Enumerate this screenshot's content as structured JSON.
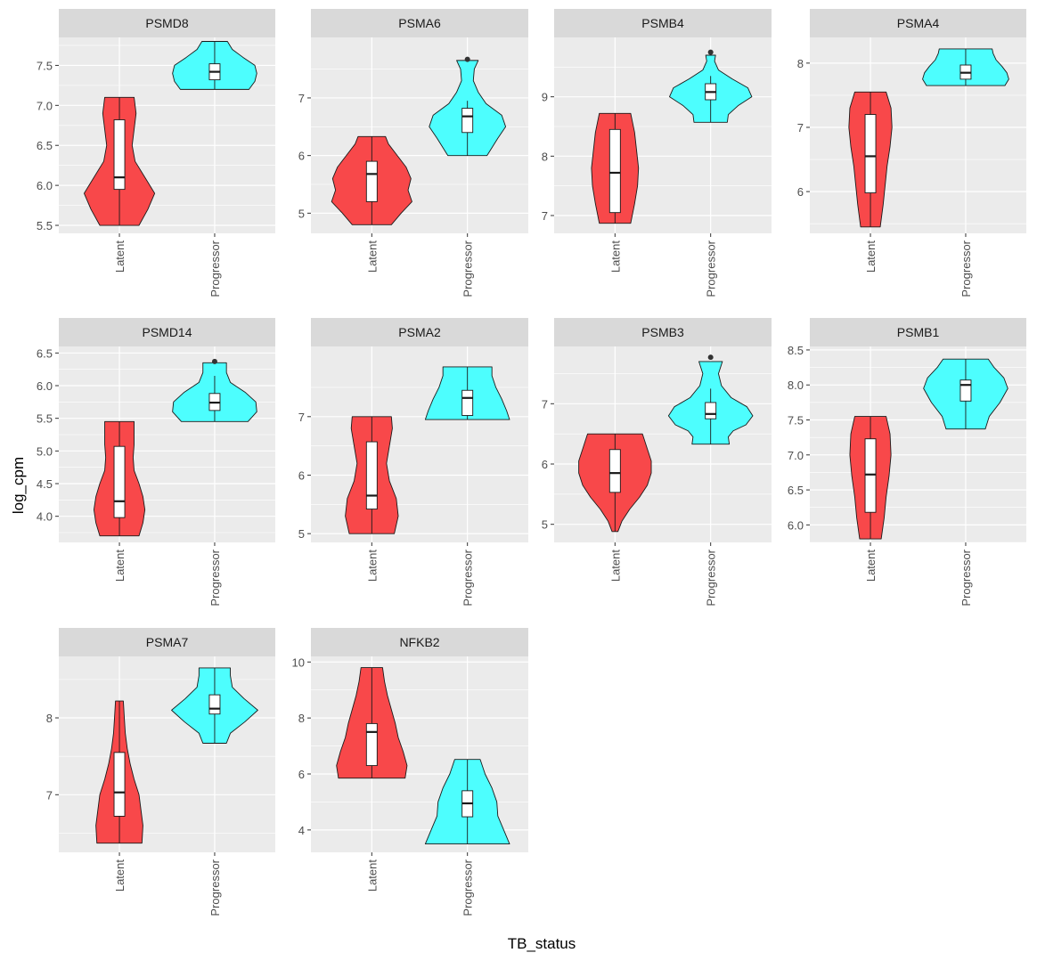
{
  "figure": {
    "xlabel": "TB_status",
    "ylabel": "log_cpm",
    "colors": {
      "Latent": "#F8484A",
      "Progressor": "#4DFEFE",
      "panel_bg": "#EBEBEB",
      "strip_bg": "#D9D9D9",
      "grid": "#FFFFFF"
    }
  },
  "chart_data": [
    {
      "type": "violin",
      "title": "PSMD8",
      "categories": [
        "Latent",
        "Progressor"
      ],
      "ylim": [
        5.4,
        7.85
      ],
      "yticks": [
        "5.5",
        "6.0",
        "6.5",
        "7.0",
        "7.5"
      ],
      "series": [
        {
          "name": "Latent",
          "violin": [
            [
              5.5,
              0.4
            ],
            [
              5.7,
              0.58
            ],
            [
              5.9,
              0.72
            ],
            [
              6.1,
              0.52
            ],
            [
              6.3,
              0.32
            ],
            [
              6.5,
              0.26
            ],
            [
              6.7,
              0.3
            ],
            [
              6.9,
              0.34
            ],
            [
              7.1,
              0.3
            ]
          ],
          "box": {
            "q1": 5.95,
            "median": 6.1,
            "q3": 6.82,
            "whisker_low": 5.5,
            "whisker_high": 7.1
          },
          "outliers": []
        },
        {
          "name": "Progressor",
          "violin": [
            [
              7.2,
              0.7
            ],
            [
              7.3,
              0.82
            ],
            [
              7.4,
              0.86
            ],
            [
              7.5,
              0.82
            ],
            [
              7.6,
              0.58
            ],
            [
              7.7,
              0.36
            ],
            [
              7.8,
              0.26
            ]
          ],
          "box": {
            "q1": 7.32,
            "median": 7.42,
            "q3": 7.52,
            "whisker_low": 7.2,
            "whisker_high": 7.8
          },
          "outliers": []
        }
      ]
    },
    {
      "type": "violin",
      "title": "PSMA6",
      "categories": [
        "Latent",
        "Progressor"
      ],
      "ylim": [
        4.65,
        8.05
      ],
      "yticks": [
        "5",
        "6",
        "7"
      ],
      "series": [
        {
          "name": "Latent",
          "violin": [
            [
              4.8,
              0.4
            ],
            [
              5.0,
              0.6
            ],
            [
              5.2,
              0.82
            ],
            [
              5.4,
              0.74
            ],
            [
              5.6,
              0.8
            ],
            [
              5.8,
              0.7
            ],
            [
              6.0,
              0.52
            ],
            [
              6.2,
              0.34
            ],
            [
              6.33,
              0.28
            ]
          ],
          "box": {
            "q1": 5.2,
            "median": 5.68,
            "q3": 5.9,
            "whisker_low": 4.8,
            "whisker_high": 6.33
          },
          "outliers": []
        },
        {
          "name": "Progressor",
          "violin": [
            [
              6.0,
              0.4
            ],
            [
              6.3,
              0.62
            ],
            [
              6.5,
              0.78
            ],
            [
              6.7,
              0.7
            ],
            [
              6.9,
              0.38
            ],
            [
              7.1,
              0.22
            ],
            [
              7.3,
              0.12
            ],
            [
              7.5,
              0.14
            ],
            [
              7.65,
              0.22
            ]
          ],
          "box": {
            "q1": 6.4,
            "median": 6.68,
            "q3": 6.82,
            "whisker_low": 6.0,
            "whisker_high": 6.95
          },
          "outliers": [
            7.67
          ]
        }
      ]
    },
    {
      "type": "violin",
      "title": "PSMB4",
      "categories": [
        "Latent",
        "Progressor"
      ],
      "ylim": [
        6.7,
        10.0
      ],
      "yticks": [
        "7",
        "8",
        "9"
      ],
      "series": [
        {
          "name": "Latent",
          "violin": [
            [
              6.87,
              0.32
            ],
            [
              7.2,
              0.4
            ],
            [
              7.5,
              0.46
            ],
            [
              7.8,
              0.48
            ],
            [
              8.1,
              0.44
            ],
            [
              8.4,
              0.4
            ],
            [
              8.72,
              0.32
            ]
          ],
          "box": {
            "q1": 7.05,
            "median": 7.72,
            "q3": 8.45,
            "whisker_low": 6.87,
            "whisker_high": 8.72
          },
          "outliers": []
        },
        {
          "name": "Progressor",
          "violin": [
            [
              8.57,
              0.34
            ],
            [
              8.7,
              0.36
            ],
            [
              8.85,
              0.56
            ],
            [
              9.0,
              0.84
            ],
            [
              9.15,
              0.76
            ],
            [
              9.3,
              0.44
            ],
            [
              9.45,
              0.16
            ],
            [
              9.6,
              0.08
            ],
            [
              9.7,
              0.1
            ]
          ],
          "box": {
            "q1": 8.95,
            "median": 9.08,
            "q3": 9.22,
            "whisker_low": 8.57,
            "whisker_high": 9.35
          },
          "outliers": [
            9.75
          ]
        }
      ]
    },
    {
      "type": "violin",
      "title": "PSMA4",
      "categories": [
        "Latent",
        "Progressor"
      ],
      "ylim": [
        5.35,
        8.4
      ],
      "yticks": [
        "6",
        "7",
        "8"
      ],
      "series": [
        {
          "name": "Latent",
          "violin": [
            [
              5.45,
              0.2
            ],
            [
              5.8,
              0.26
            ],
            [
              6.1,
              0.3
            ],
            [
              6.4,
              0.34
            ],
            [
              6.7,
              0.4
            ],
            [
              7.0,
              0.44
            ],
            [
              7.3,
              0.42
            ],
            [
              7.55,
              0.32
            ]
          ],
          "box": {
            "q1": 5.98,
            "median": 6.55,
            "q3": 7.2,
            "whisker_low": 5.45,
            "whisker_high": 7.55
          },
          "outliers": []
        },
        {
          "name": "Progressor",
          "violin": [
            [
              7.65,
              0.8
            ],
            [
              7.75,
              0.88
            ],
            [
              7.85,
              0.84
            ],
            [
              7.95,
              0.74
            ],
            [
              8.05,
              0.62
            ],
            [
              8.15,
              0.56
            ],
            [
              8.22,
              0.54
            ]
          ],
          "box": {
            "q1": 7.75,
            "median": 7.85,
            "q3": 7.97,
            "whisker_low": 7.65,
            "whisker_high": 8.22
          },
          "outliers": []
        }
      ]
    },
    {
      "type": "violin",
      "title": "PSMD14",
      "categories": [
        "Latent",
        "Progressor"
      ],
      "ylim": [
        3.6,
        6.6
      ],
      "yticks": [
        "4.0",
        "4.5",
        "5.0",
        "5.5",
        "6.0",
        "6.5"
      ],
      "series": [
        {
          "name": "Latent",
          "violin": [
            [
              3.7,
              0.4
            ],
            [
              3.9,
              0.48
            ],
            [
              4.1,
              0.52
            ],
            [
              4.3,
              0.48
            ],
            [
              4.5,
              0.4
            ],
            [
              4.7,
              0.3
            ],
            [
              4.9,
              0.28
            ],
            [
              5.1,
              0.3
            ],
            [
              5.3,
              0.3
            ],
            [
              5.45,
              0.3
            ]
          ],
          "box": {
            "q1": 3.98,
            "median": 4.23,
            "q3": 5.07,
            "whisker_low": 3.7,
            "whisker_high": 5.45
          },
          "outliers": []
        },
        {
          "name": "Progressor",
          "violin": [
            [
              5.45,
              0.68
            ],
            [
              5.6,
              0.86
            ],
            [
              5.75,
              0.84
            ],
            [
              5.9,
              0.62
            ],
            [
              6.05,
              0.32
            ],
            [
              6.2,
              0.24
            ],
            [
              6.35,
              0.24
            ]
          ],
          "box": {
            "q1": 5.62,
            "median": 5.74,
            "q3": 5.88,
            "whisker_low": 5.45,
            "whisker_high": 6.15
          },
          "outliers": [
            6.37
          ]
        }
      ]
    },
    {
      "type": "violin",
      "title": "PSMA2",
      "categories": [
        "Latent",
        "Progressor"
      ],
      "ylim": [
        4.85,
        8.2
      ],
      "yticks": [
        "5",
        "6",
        "7"
      ],
      "series": [
        {
          "name": "Latent",
          "violin": [
            [
              5.0,
              0.46
            ],
            [
              5.3,
              0.54
            ],
            [
              5.6,
              0.5
            ],
            [
              5.9,
              0.36
            ],
            [
              6.2,
              0.3
            ],
            [
              6.5,
              0.36
            ],
            [
              6.8,
              0.42
            ],
            [
              7.0,
              0.4
            ]
          ],
          "box": {
            "q1": 5.42,
            "median": 5.65,
            "q3": 6.57,
            "whisker_low": 5.0,
            "whisker_high": 7.0
          },
          "outliers": []
        },
        {
          "name": "Progressor",
          "violin": [
            [
              6.95,
              0.86
            ],
            [
              7.1,
              0.8
            ],
            [
              7.3,
              0.7
            ],
            [
              7.5,
              0.58
            ],
            [
              7.7,
              0.5
            ],
            [
              7.85,
              0.5
            ]
          ],
          "box": {
            "q1": 7.02,
            "median": 7.32,
            "q3": 7.45,
            "whisker_low": 6.95,
            "whisker_high": 7.85
          },
          "outliers": []
        }
      ]
    },
    {
      "type": "violin",
      "title": "PSMB3",
      "categories": [
        "Latent",
        "Progressor"
      ],
      "ylim": [
        4.7,
        7.95
      ],
      "yticks": [
        "5",
        "6",
        "7"
      ],
      "series": [
        {
          "name": "Latent",
          "violin": [
            [
              4.88,
              0.06
            ],
            [
              5.05,
              0.14
            ],
            [
              5.25,
              0.3
            ],
            [
              5.45,
              0.5
            ],
            [
              5.65,
              0.66
            ],
            [
              5.85,
              0.74
            ],
            [
              6.05,
              0.74
            ],
            [
              6.25,
              0.66
            ],
            [
              6.5,
              0.56
            ]
          ],
          "box": {
            "q1": 5.53,
            "median": 5.85,
            "q3": 6.24,
            "whisker_low": 4.88,
            "whisker_high": 6.5
          },
          "outliers": []
        },
        {
          "name": "Progressor",
          "violin": [
            [
              6.33,
              0.38
            ],
            [
              6.45,
              0.36
            ],
            [
              6.55,
              0.46
            ],
            [
              6.65,
              0.72
            ],
            [
              6.8,
              0.86
            ],
            [
              6.95,
              0.74
            ],
            [
              7.1,
              0.42
            ],
            [
              7.3,
              0.22
            ],
            [
              7.5,
              0.16
            ],
            [
              7.7,
              0.24
            ]
          ],
          "box": {
            "q1": 6.75,
            "median": 6.83,
            "q3": 7.02,
            "whisker_low": 6.33,
            "whisker_high": 7.25
          },
          "outliers": [
            7.77
          ]
        }
      ]
    },
    {
      "type": "violin",
      "title": "PSMB1",
      "categories": [
        "Latent",
        "Progressor"
      ],
      "ylim": [
        5.75,
        8.55
      ],
      "yticks": [
        "6.0",
        "6.5",
        "7.0",
        "7.5",
        "8.0",
        "8.5"
      ],
      "series": [
        {
          "name": "Latent",
          "violin": [
            [
              5.8,
              0.22
            ],
            [
              6.1,
              0.28
            ],
            [
              6.4,
              0.32
            ],
            [
              6.7,
              0.38
            ],
            [
              7.0,
              0.42
            ],
            [
              7.3,
              0.4
            ],
            [
              7.55,
              0.32
            ]
          ],
          "box": {
            "q1": 6.18,
            "median": 6.72,
            "q3": 7.23,
            "whisker_low": 5.8,
            "whisker_high": 7.55
          },
          "outliers": []
        },
        {
          "name": "Progressor",
          "violin": [
            [
              7.37,
              0.4
            ],
            [
              7.55,
              0.48
            ],
            [
              7.75,
              0.7
            ],
            [
              7.95,
              0.86
            ],
            [
              8.1,
              0.78
            ],
            [
              8.25,
              0.58
            ],
            [
              8.37,
              0.46
            ]
          ],
          "box": {
            "q1": 7.77,
            "median": 8.0,
            "q3": 8.07,
            "whisker_low": 7.37,
            "whisker_high": 8.37
          },
          "outliers": []
        }
      ]
    },
    {
      "type": "violin",
      "title": "PSMA7",
      "categories": [
        "Latent",
        "Progressor"
      ],
      "ylim": [
        6.25,
        8.8
      ],
      "yticks": [
        "7",
        "8"
      ],
      "series": [
        {
          "name": "Latent",
          "violin": [
            [
              6.37,
              0.46
            ],
            [
              6.6,
              0.48
            ],
            [
              6.8,
              0.44
            ],
            [
              7.0,
              0.4
            ],
            [
              7.2,
              0.3
            ],
            [
              7.4,
              0.22
            ],
            [
              7.6,
              0.16
            ],
            [
              7.8,
              0.12
            ],
            [
              8.0,
              0.1
            ],
            [
              8.22,
              0.08
            ]
          ],
          "box": {
            "q1": 6.72,
            "median": 7.03,
            "q3": 7.55,
            "whisker_low": 6.37,
            "whisker_high": 8.22
          },
          "outliers": []
        },
        {
          "name": "Progressor",
          "violin": [
            [
              7.67,
              0.24
            ],
            [
              7.8,
              0.32
            ],
            [
              7.95,
              0.62
            ],
            [
              8.1,
              0.88
            ],
            [
              8.25,
              0.6
            ],
            [
              8.4,
              0.36
            ],
            [
              8.55,
              0.32
            ],
            [
              8.65,
              0.32
            ]
          ],
          "box": {
            "q1": 8.05,
            "median": 8.12,
            "q3": 8.3,
            "whisker_low": 7.67,
            "whisker_high": 8.65
          },
          "outliers": []
        }
      ]
    },
    {
      "type": "violin",
      "title": "NFKB2",
      "categories": [
        "Latent",
        "Progressor"
      ],
      "ylim": [
        3.2,
        10.2
      ],
      "yticks": [
        "4",
        "6",
        "8",
        "10"
      ],
      "series": [
        {
          "name": "Latent",
          "violin": [
            [
              5.85,
              0.68
            ],
            [
              6.3,
              0.72
            ],
            [
              6.8,
              0.64
            ],
            [
              7.3,
              0.54
            ],
            [
              7.8,
              0.48
            ],
            [
              8.3,
              0.4
            ],
            [
              8.8,
              0.32
            ],
            [
              9.3,
              0.26
            ],
            [
              9.8,
              0.22
            ]
          ],
          "box": {
            "q1": 6.3,
            "median": 7.5,
            "q3": 7.8,
            "whisker_low": 5.85,
            "whisker_high": 9.8
          },
          "outliers": []
        },
        {
          "name": "Progressor",
          "violin": [
            [
              3.5,
              0.86
            ],
            [
              4.0,
              0.74
            ],
            [
              4.5,
              0.62
            ],
            [
              5.0,
              0.6
            ],
            [
              5.5,
              0.5
            ],
            [
              6.0,
              0.36
            ],
            [
              6.52,
              0.26
            ]
          ],
          "box": {
            "q1": 4.47,
            "median": 4.95,
            "q3": 5.4,
            "whisker_low": 3.5,
            "whisker_high": 6.52
          },
          "outliers": []
        }
      ]
    }
  ]
}
